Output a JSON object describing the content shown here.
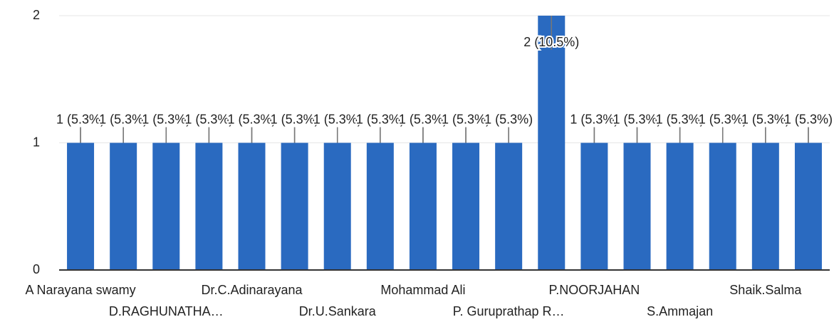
{
  "chart_data": {
    "type": "bar",
    "categories": [
      "A Narayana swamy",
      null,
      "D.RAGHUNATHA…",
      null,
      "Dr.C.Adinarayana",
      null,
      "Dr.U.Sankara",
      null,
      "Mohammad Ali",
      null,
      "P. Guruprathap R…",
      null,
      "P.NOORJAHAN",
      null,
      "S.Ammajan",
      null,
      "Shaik.Salma",
      null
    ],
    "values": [
      1,
      1,
      1,
      1,
      1,
      1,
      1,
      1,
      1,
      1,
      1,
      2,
      1,
      1,
      1,
      1,
      1,
      1
    ],
    "value_labels": [
      "1 (5.3%)",
      "1 (5.3%)",
      "1 (5.3%)",
      "1 (5.3%)",
      "1 (5.3%)",
      "1 (5.3%)",
      "1 (5.3%)",
      "1 (5.3%)",
      "1 (5.3%)",
      "1 (5.3%)",
      "1 (5.3%)",
      "2 (10.5%)",
      "1 (5.3%)",
      "1 (5.3%)",
      "1 (5.3%)",
      "1 (5.3%)",
      "1 (5.3%)",
      "1 (5.3%)"
    ],
    "color": "#2a6ac0",
    "ylim": [
      0,
      2
    ],
    "yticks": [
      0,
      1,
      2
    ],
    "grid": true
  }
}
